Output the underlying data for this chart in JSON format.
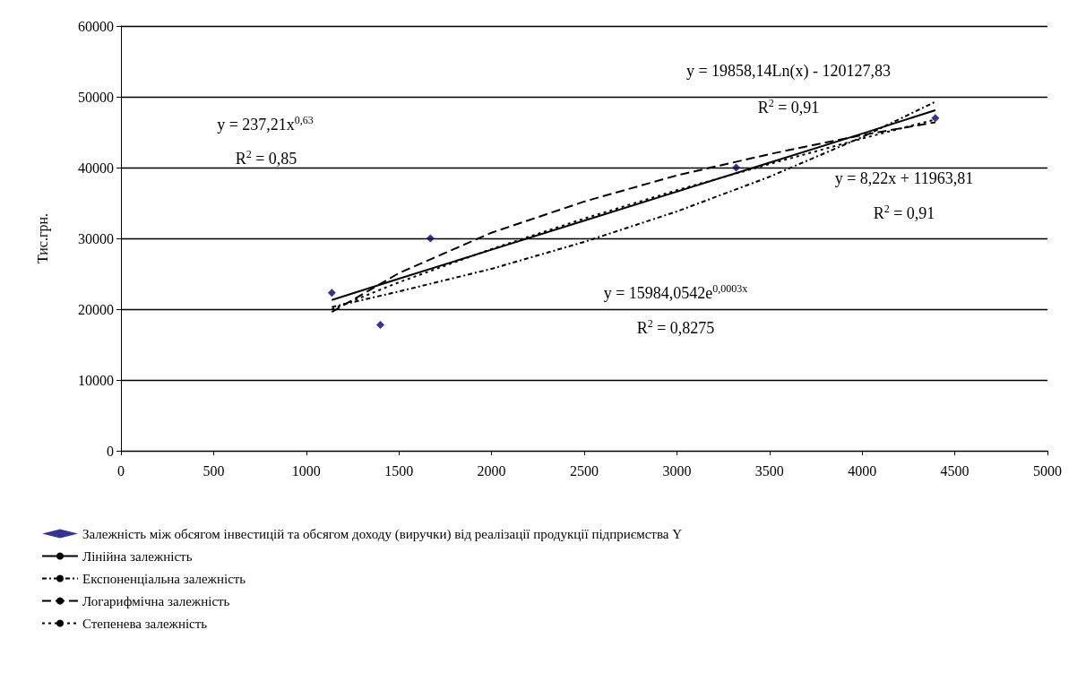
{
  "chart_data": {
    "type": "scatter",
    "ylabel": "Тис.грн.",
    "xlim": [
      0,
      5000
    ],
    "xticks": [
      0,
      500,
      1000,
      1500,
      2000,
      2500,
      3000,
      3500,
      4000,
      4500,
      5000
    ],
    "ylim": [
      0,
      60000
    ],
    "yticks": [
      0,
      10000,
      20000,
      30000,
      40000,
      50000,
      60000
    ],
    "grid": "y",
    "legend": "bottom",
    "series": [
      {
        "name": "Залежність між обсягом інвестицій та обсягом доходу (виручки) від реалізації продукції підприємства Y",
        "marker": "diamond",
        "color": "#000080",
        "x": [
          1138,
          1400,
          1670,
          3320,
          4395
        ],
        "values": [
          22300,
          17800,
          30000,
          40000,
          47000
        ]
      },
      {
        "name": "Лінійна залежність",
        "type": "line",
        "marker": "none",
        "line_style": "solid",
        "color": "#000000",
        "x": [
          1138,
          1500,
          2000,
          2500,
          3000,
          3500,
          4000,
          4395
        ],
        "values": [
          21300,
          24300,
          28400,
          32500,
          36600,
          40700,
          44800,
          48100
        ]
      },
      {
        "name": "Експоненціальна залежність",
        "type": "line",
        "marker": "none",
        "line_style": "dashed",
        "color": "#000000",
        "x": [
          1138,
          1500,
          2000,
          2500,
          3000,
          3500,
          4000,
          4395
        ],
        "values": [
          20300,
          22500,
          25700,
          29500,
          33800,
          38700,
          44300,
          49300
        ]
      },
      {
        "name": "Логарифмічна залежність",
        "type": "line",
        "marker": "none",
        "line_style": "dashed",
        "color": "#000000",
        "x": [
          1138,
          1500,
          2000,
          2500,
          3000,
          3500,
          4000,
          4395
        ],
        "values": [
          19600,
          25100,
          30800,
          35200,
          38900,
          41900,
          44600,
          46400
        ]
      },
      {
        "name": "Степенева залежність",
        "type": "line",
        "marker": "none",
        "line_style": "dotted",
        "color": "#000000",
        "x": [
          1138,
          1500,
          2000,
          2500,
          3000,
          3500,
          4000,
          4395
        ],
        "values": [
          20000,
          23800,
          28500,
          32800,
          36800,
          40500,
          44100,
          46800
        ]
      }
    ],
    "annotations": [
      "y = 237,21x$^{0,63}$",
      "R$^{2}$ = 0,85",
      "y = 19858,14Ln(x) - 120127,83",
      "R$^{2}$ = 0,91",
      "y = 8,22x + 11963,81",
      "R$^{2}$ = 0,91",
      "y = 15984,0542e$^{0,0003x}$",
      "R$^{2}$ = 0,8275"
    ]
  }
}
